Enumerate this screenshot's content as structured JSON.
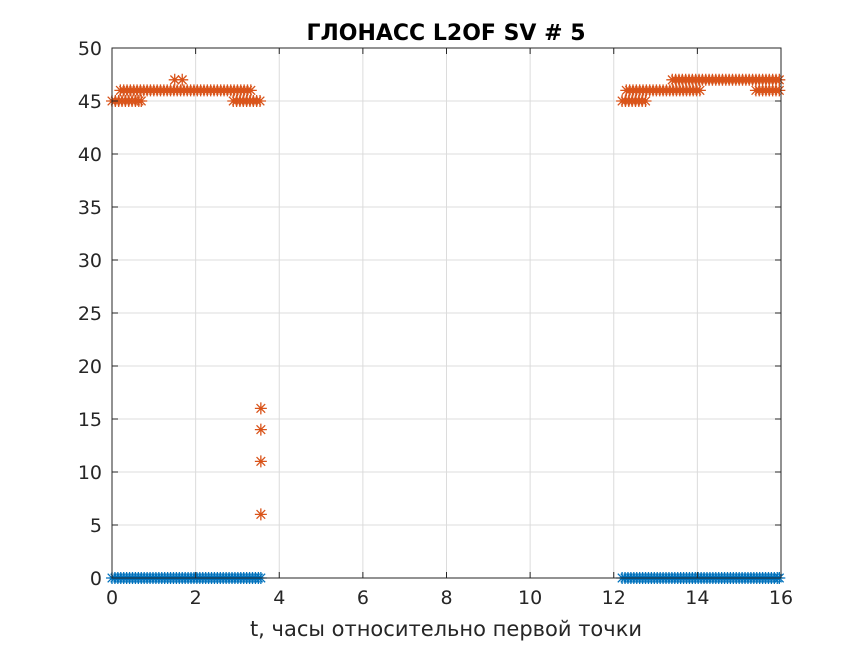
{
  "chart_data": {
    "type": "scatter",
    "title": "ГЛОНАСС L2OF SV # 5",
    "xlabel": "t, часы относительно первой точки",
    "ylabel": "",
    "xlim": [
      0,
      16
    ],
    "ylim": [
      0,
      50
    ],
    "xticks": [
      0,
      2,
      4,
      6,
      8,
      10,
      12,
      14,
      16
    ],
    "yticks": [
      0,
      5,
      10,
      15,
      20,
      25,
      30,
      35,
      40,
      45,
      50
    ],
    "grid": true,
    "marker": "asterisk",
    "series": [
      {
        "color": "#D95319",
        "points": [
          [
            0.0,
            45
          ],
          [
            0.08,
            45
          ],
          [
            0.16,
            45
          ],
          [
            0.24,
            45
          ],
          [
            0.32,
            45
          ],
          [
            0.4,
            45
          ],
          [
            0.48,
            45
          ],
          [
            0.56,
            45
          ],
          [
            0.64,
            45
          ],
          [
            0.7,
            45
          ],
          [
            0.2,
            46
          ],
          [
            0.28,
            46
          ],
          [
            0.36,
            46
          ],
          [
            0.44,
            46
          ],
          [
            0.52,
            46
          ],
          [
            0.6,
            46
          ],
          [
            0.68,
            46
          ],
          [
            0.76,
            46
          ],
          [
            0.84,
            46
          ],
          [
            0.92,
            46
          ],
          [
            1.0,
            46
          ],
          [
            1.08,
            46
          ],
          [
            1.16,
            46
          ],
          [
            1.24,
            46
          ],
          [
            1.32,
            46
          ],
          [
            1.4,
            46
          ],
          [
            1.48,
            46
          ],
          [
            1.56,
            46
          ],
          [
            1.64,
            46
          ],
          [
            1.72,
            46
          ],
          [
            1.8,
            46
          ],
          [
            1.88,
            46
          ],
          [
            1.96,
            46
          ],
          [
            2.04,
            46
          ],
          [
            2.12,
            46
          ],
          [
            2.2,
            46
          ],
          [
            2.28,
            46
          ],
          [
            2.36,
            46
          ],
          [
            2.44,
            46
          ],
          [
            2.52,
            46
          ],
          [
            2.6,
            46
          ],
          [
            2.68,
            46
          ],
          [
            2.76,
            46
          ],
          [
            2.84,
            46
          ],
          [
            2.92,
            46
          ],
          [
            3.0,
            46
          ],
          [
            3.08,
            46
          ],
          [
            3.16,
            46
          ],
          [
            3.24,
            46
          ],
          [
            3.32,
            46
          ],
          [
            1.5,
            47
          ],
          [
            1.68,
            47
          ],
          [
            2.9,
            45
          ],
          [
            2.98,
            45
          ],
          [
            3.06,
            45
          ],
          [
            3.14,
            45
          ],
          [
            3.22,
            45
          ],
          [
            3.3,
            45
          ],
          [
            3.38,
            45
          ],
          [
            3.46,
            45
          ],
          [
            3.54,
            45
          ],
          [
            3.56,
            16
          ],
          [
            3.56,
            14
          ],
          [
            3.56,
            11
          ],
          [
            3.56,
            6
          ],
          [
            12.2,
            45
          ],
          [
            12.28,
            45
          ],
          [
            12.36,
            45
          ],
          [
            12.44,
            45
          ],
          [
            12.52,
            45
          ],
          [
            12.6,
            45
          ],
          [
            12.68,
            45
          ],
          [
            12.76,
            45
          ],
          [
            12.3,
            46
          ],
          [
            12.38,
            46
          ],
          [
            12.46,
            46
          ],
          [
            12.54,
            46
          ],
          [
            12.62,
            46
          ],
          [
            12.7,
            46
          ],
          [
            12.78,
            46
          ],
          [
            12.86,
            46
          ],
          [
            12.94,
            46
          ],
          [
            13.02,
            46
          ],
          [
            13.1,
            46
          ],
          [
            13.18,
            46
          ],
          [
            13.26,
            46
          ],
          [
            13.34,
            46
          ],
          [
            13.42,
            46
          ],
          [
            13.5,
            46
          ],
          [
            13.58,
            46
          ],
          [
            13.66,
            46
          ],
          [
            13.74,
            46
          ],
          [
            13.82,
            46
          ],
          [
            13.9,
            46
          ],
          [
            13.98,
            46
          ],
          [
            14.06,
            46
          ],
          [
            13.4,
            47
          ],
          [
            13.48,
            47
          ],
          [
            13.56,
            47
          ],
          [
            13.64,
            47
          ],
          [
            13.72,
            47
          ],
          [
            13.8,
            47
          ],
          [
            13.88,
            47
          ],
          [
            13.96,
            47
          ],
          [
            14.04,
            47
          ],
          [
            14.12,
            47
          ],
          [
            14.2,
            47
          ],
          [
            14.28,
            47
          ],
          [
            14.36,
            47
          ],
          [
            14.44,
            47
          ],
          [
            14.52,
            47
          ],
          [
            14.6,
            47
          ],
          [
            14.68,
            47
          ],
          [
            14.76,
            47
          ],
          [
            14.84,
            47
          ],
          [
            14.92,
            47
          ],
          [
            15.0,
            47
          ],
          [
            15.08,
            47
          ],
          [
            15.16,
            47
          ],
          [
            15.24,
            47
          ],
          [
            15.32,
            47
          ],
          [
            15.4,
            47
          ],
          [
            15.48,
            47
          ],
          [
            15.56,
            47
          ],
          [
            15.64,
            47
          ],
          [
            15.72,
            47
          ],
          [
            15.8,
            47
          ],
          [
            15.88,
            47
          ],
          [
            15.96,
            47
          ],
          [
            15.4,
            46
          ],
          [
            15.48,
            46
          ],
          [
            15.56,
            46
          ],
          [
            15.64,
            46
          ],
          [
            15.72,
            46
          ],
          [
            15.8,
            46
          ],
          [
            15.88,
            46
          ],
          [
            15.96,
            46
          ]
        ]
      },
      {
        "color": "#0072BD",
        "points": [
          [
            0.0,
            0
          ],
          [
            0.07,
            0
          ],
          [
            0.14,
            0
          ],
          [
            0.21,
            0
          ],
          [
            0.28,
            0
          ],
          [
            0.35,
            0
          ],
          [
            0.42,
            0
          ],
          [
            0.49,
            0
          ],
          [
            0.56,
            0
          ],
          [
            0.63,
            0
          ],
          [
            0.7,
            0
          ],
          [
            0.77,
            0
          ],
          [
            0.84,
            0
          ],
          [
            0.91,
            0
          ],
          [
            0.98,
            0
          ],
          [
            1.05,
            0
          ],
          [
            1.12,
            0
          ],
          [
            1.19,
            0
          ],
          [
            1.26,
            0
          ],
          [
            1.33,
            0
          ],
          [
            1.4,
            0
          ],
          [
            1.47,
            0
          ],
          [
            1.54,
            0
          ],
          [
            1.61,
            0
          ],
          [
            1.68,
            0
          ],
          [
            1.75,
            0
          ],
          [
            1.82,
            0
          ],
          [
            1.89,
            0
          ],
          [
            1.96,
            0
          ],
          [
            2.03,
            0
          ],
          [
            2.1,
            0
          ],
          [
            2.17,
            0
          ],
          [
            2.24,
            0
          ],
          [
            2.31,
            0
          ],
          [
            2.38,
            0
          ],
          [
            2.45,
            0
          ],
          [
            2.52,
            0
          ],
          [
            2.59,
            0
          ],
          [
            2.66,
            0
          ],
          [
            2.73,
            0
          ],
          [
            2.8,
            0
          ],
          [
            2.87,
            0
          ],
          [
            2.94,
            0
          ],
          [
            3.01,
            0
          ],
          [
            3.08,
            0
          ],
          [
            3.15,
            0
          ],
          [
            3.22,
            0
          ],
          [
            3.29,
            0
          ],
          [
            3.36,
            0
          ],
          [
            3.43,
            0
          ],
          [
            3.5,
            0
          ],
          [
            3.56,
            0
          ],
          [
            12.2,
            0
          ],
          [
            12.27,
            0
          ],
          [
            12.34,
            0
          ],
          [
            12.41,
            0
          ],
          [
            12.48,
            0
          ],
          [
            12.55,
            0
          ],
          [
            12.62,
            0
          ],
          [
            12.69,
            0
          ],
          [
            12.76,
            0
          ],
          [
            12.83,
            0
          ],
          [
            12.9,
            0
          ],
          [
            12.97,
            0
          ],
          [
            13.04,
            0
          ],
          [
            13.11,
            0
          ],
          [
            13.18,
            0
          ],
          [
            13.25,
            0
          ],
          [
            13.32,
            0
          ],
          [
            13.39,
            0
          ],
          [
            13.46,
            0
          ],
          [
            13.53,
            0
          ],
          [
            13.6,
            0
          ],
          [
            13.67,
            0
          ],
          [
            13.74,
            0
          ],
          [
            13.81,
            0
          ],
          [
            13.88,
            0
          ],
          [
            13.95,
            0
          ],
          [
            14.02,
            0
          ],
          [
            14.09,
            0
          ],
          [
            14.16,
            0
          ],
          [
            14.23,
            0
          ],
          [
            14.3,
            0
          ],
          [
            14.37,
            0
          ],
          [
            14.44,
            0
          ],
          [
            14.51,
            0
          ],
          [
            14.58,
            0
          ],
          [
            14.65,
            0
          ],
          [
            14.72,
            0
          ],
          [
            14.79,
            0
          ],
          [
            14.86,
            0
          ],
          [
            14.93,
            0
          ],
          [
            15.0,
            0
          ],
          [
            15.07,
            0
          ],
          [
            15.14,
            0
          ],
          [
            15.21,
            0
          ],
          [
            15.28,
            0
          ],
          [
            15.35,
            0
          ],
          [
            15.42,
            0
          ],
          [
            15.49,
            0
          ],
          [
            15.56,
            0
          ],
          [
            15.63,
            0
          ],
          [
            15.7,
            0
          ],
          [
            15.77,
            0
          ],
          [
            15.84,
            0
          ],
          [
            15.91,
            0
          ],
          [
            15.96,
            0
          ]
        ]
      }
    ]
  }
}
